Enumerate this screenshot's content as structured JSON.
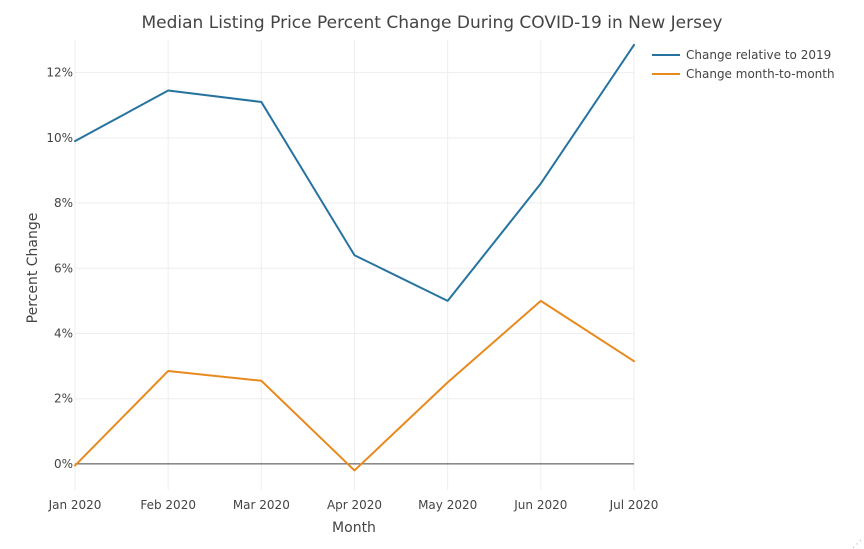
{
  "chart_data": {
    "type": "line",
    "title": "Median Listing Price Percent Change During COVID-19 in New Jersey",
    "xlabel": "Month",
    "ylabel": "Percent Change",
    "categories": [
      "Jan 2020",
      "Feb 2020",
      "Mar 2020",
      "Apr 2020",
      "May 2020",
      "Jun 2020",
      "Jul 2020"
    ],
    "y_ticks": [
      "0%",
      "2%",
      "4%",
      "6%",
      "8%",
      "10%",
      "12%"
    ],
    "y_tick_values": [
      0,
      2,
      4,
      6,
      8,
      10,
      12
    ],
    "ylim": [
      -0.8,
      13.0
    ],
    "grid": true,
    "legend_position": "top-right",
    "series": [
      {
        "name": "Change relative to 2019",
        "color": "#2673a0",
        "values": [
          9.9,
          11.45,
          11.1,
          6.4,
          5.0,
          8.6,
          12.85
        ]
      },
      {
        "name": "Change month-to-month",
        "color": "#e8891e",
        "values": [
          -0.05,
          2.85,
          2.55,
          -0.2,
          2.5,
          5.0,
          3.15
        ]
      }
    ]
  }
}
